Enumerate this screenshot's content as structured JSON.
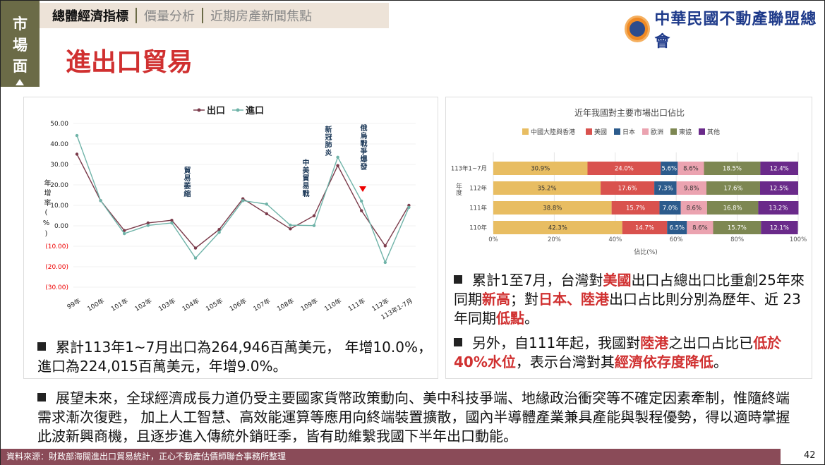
{
  "side_label": [
    "市",
    "場",
    "面"
  ],
  "tabs": [
    "總體經濟指標",
    "價量分析",
    "近期房產新聞焦點"
  ],
  "title": "進出口貿易",
  "logo_text": "中華民國不動產聯盟總會",
  "colors": {
    "export": "#7b3b4b",
    "import": "#6fb3a8",
    "accent": "#d03030",
    "side": "#6b6b47"
  },
  "chart_data": [
    {
      "type": "line",
      "legend": [
        "出口",
        "進口"
      ],
      "ylabel": "年增率(%)",
      "ylim": [
        -30,
        50
      ],
      "yticks": [
        "50.00",
        "40.00",
        "30.00",
        "20.00",
        "10.00",
        "0.00",
        "(10.00)",
        "(20.00)",
        "(30.00)"
      ],
      "categories": [
        "99年",
        "100年",
        "101年",
        "102年",
        "103年",
        "104年",
        "105年",
        "106年",
        "107年",
        "108年",
        "109年",
        "110年",
        "111年",
        "112年",
        "113年1-7月"
      ],
      "series": [
        {
          "name": "出口",
          "values": [
            35.0,
            12.3,
            -2.3,
            1.4,
            2.7,
            -10.9,
            -1.8,
            13.2,
            5.9,
            -1.5,
            4.9,
            29.4,
            7.4,
            -9.8,
            10.0
          ]
        },
        {
          "name": "進口",
          "values": [
            44.1,
            12.3,
            -3.8,
            0.2,
            1.4,
            -15.8,
            -3.2,
            12.3,
            10.6,
            0.3,
            0.1,
            33.5,
            12.1,
            -17.9,
            9.0
          ]
        }
      ],
      "annotations": [
        "貿易萎縮",
        "中美貿易戰",
        "新冠肺炎",
        "俄烏戰爭爆發"
      ]
    },
    {
      "type": "bar",
      "stacked": true,
      "title": "近年我國對主要市場出口佔比",
      "xlabel": "佔比(%)",
      "ylabel": "年度",
      "xticks": [
        "0%",
        "20%",
        "40%",
        "60%",
        "80%",
        "100%"
      ],
      "categories": [
        "113年1~7月",
        "112年",
        "111年",
        "110年"
      ],
      "series": [
        {
          "name": "中國大陸與香港",
          "color": "#e8bd62",
          "values": [
            30.9,
            35.2,
            38.8,
            42.3
          ]
        },
        {
          "name": "美國",
          "color": "#d9524e",
          "values": [
            24.0,
            17.6,
            15.7,
            14.7
          ]
        },
        {
          "name": "日本",
          "color": "#2c5b8c",
          "values": [
            5.6,
            7.3,
            7.0,
            6.5
          ]
        },
        {
          "name": "歐洲",
          "color": "#eba3b0",
          "values": [
            8.6,
            9.8,
            8.6,
            8.6
          ]
        },
        {
          "name": "東協",
          "color": "#7d8752",
          "values": [
            18.5,
            17.6,
            16.8,
            15.7
          ]
        },
        {
          "name": "其他",
          "color": "#6a2a8a",
          "values": [
            12.4,
            12.5,
            13.2,
            12.1
          ]
        }
      ]
    }
  ],
  "bullets": {
    "left": [
      "累計113年1~7月出口為264,946百萬美元， 年增10.0%，進口為224,015百萬美元，年增9.0%。"
    ],
    "right1": [
      "累計1至7月，台灣對",
      "美國",
      "出口占總出口比重創25年來同期",
      "新高",
      "；對",
      "日本、陸港",
      "出口占比則分別為歷年、近 23 年同期",
      "低點",
      "。"
    ],
    "right2": [
      "另外，自111年起，我國對",
      "陸港",
      "之出口占比已",
      "低於40%水位",
      "，表示台灣對其",
      "經濟依存度降低",
      "。"
    ],
    "bottom": "展望未來，全球經濟成長力道仍受主要國家貨幣政策動向、美中科技爭端、地緣政治衝突等不確定因素牽制，惟隨終端需求漸次復甦， 加上人工智慧、高效能運算等應用向終端裝置擴散，國內半導體產業兼具產能與製程優勢，得以適時掌握此波新興商機，且逐步進入傳統外銷旺季，皆有助維繫我國下半年出口動能。"
  },
  "footer": "資料來源：財政部海關進出口貿易統計，正心不動產估價師聯合事務所整理",
  "page_number": "42"
}
